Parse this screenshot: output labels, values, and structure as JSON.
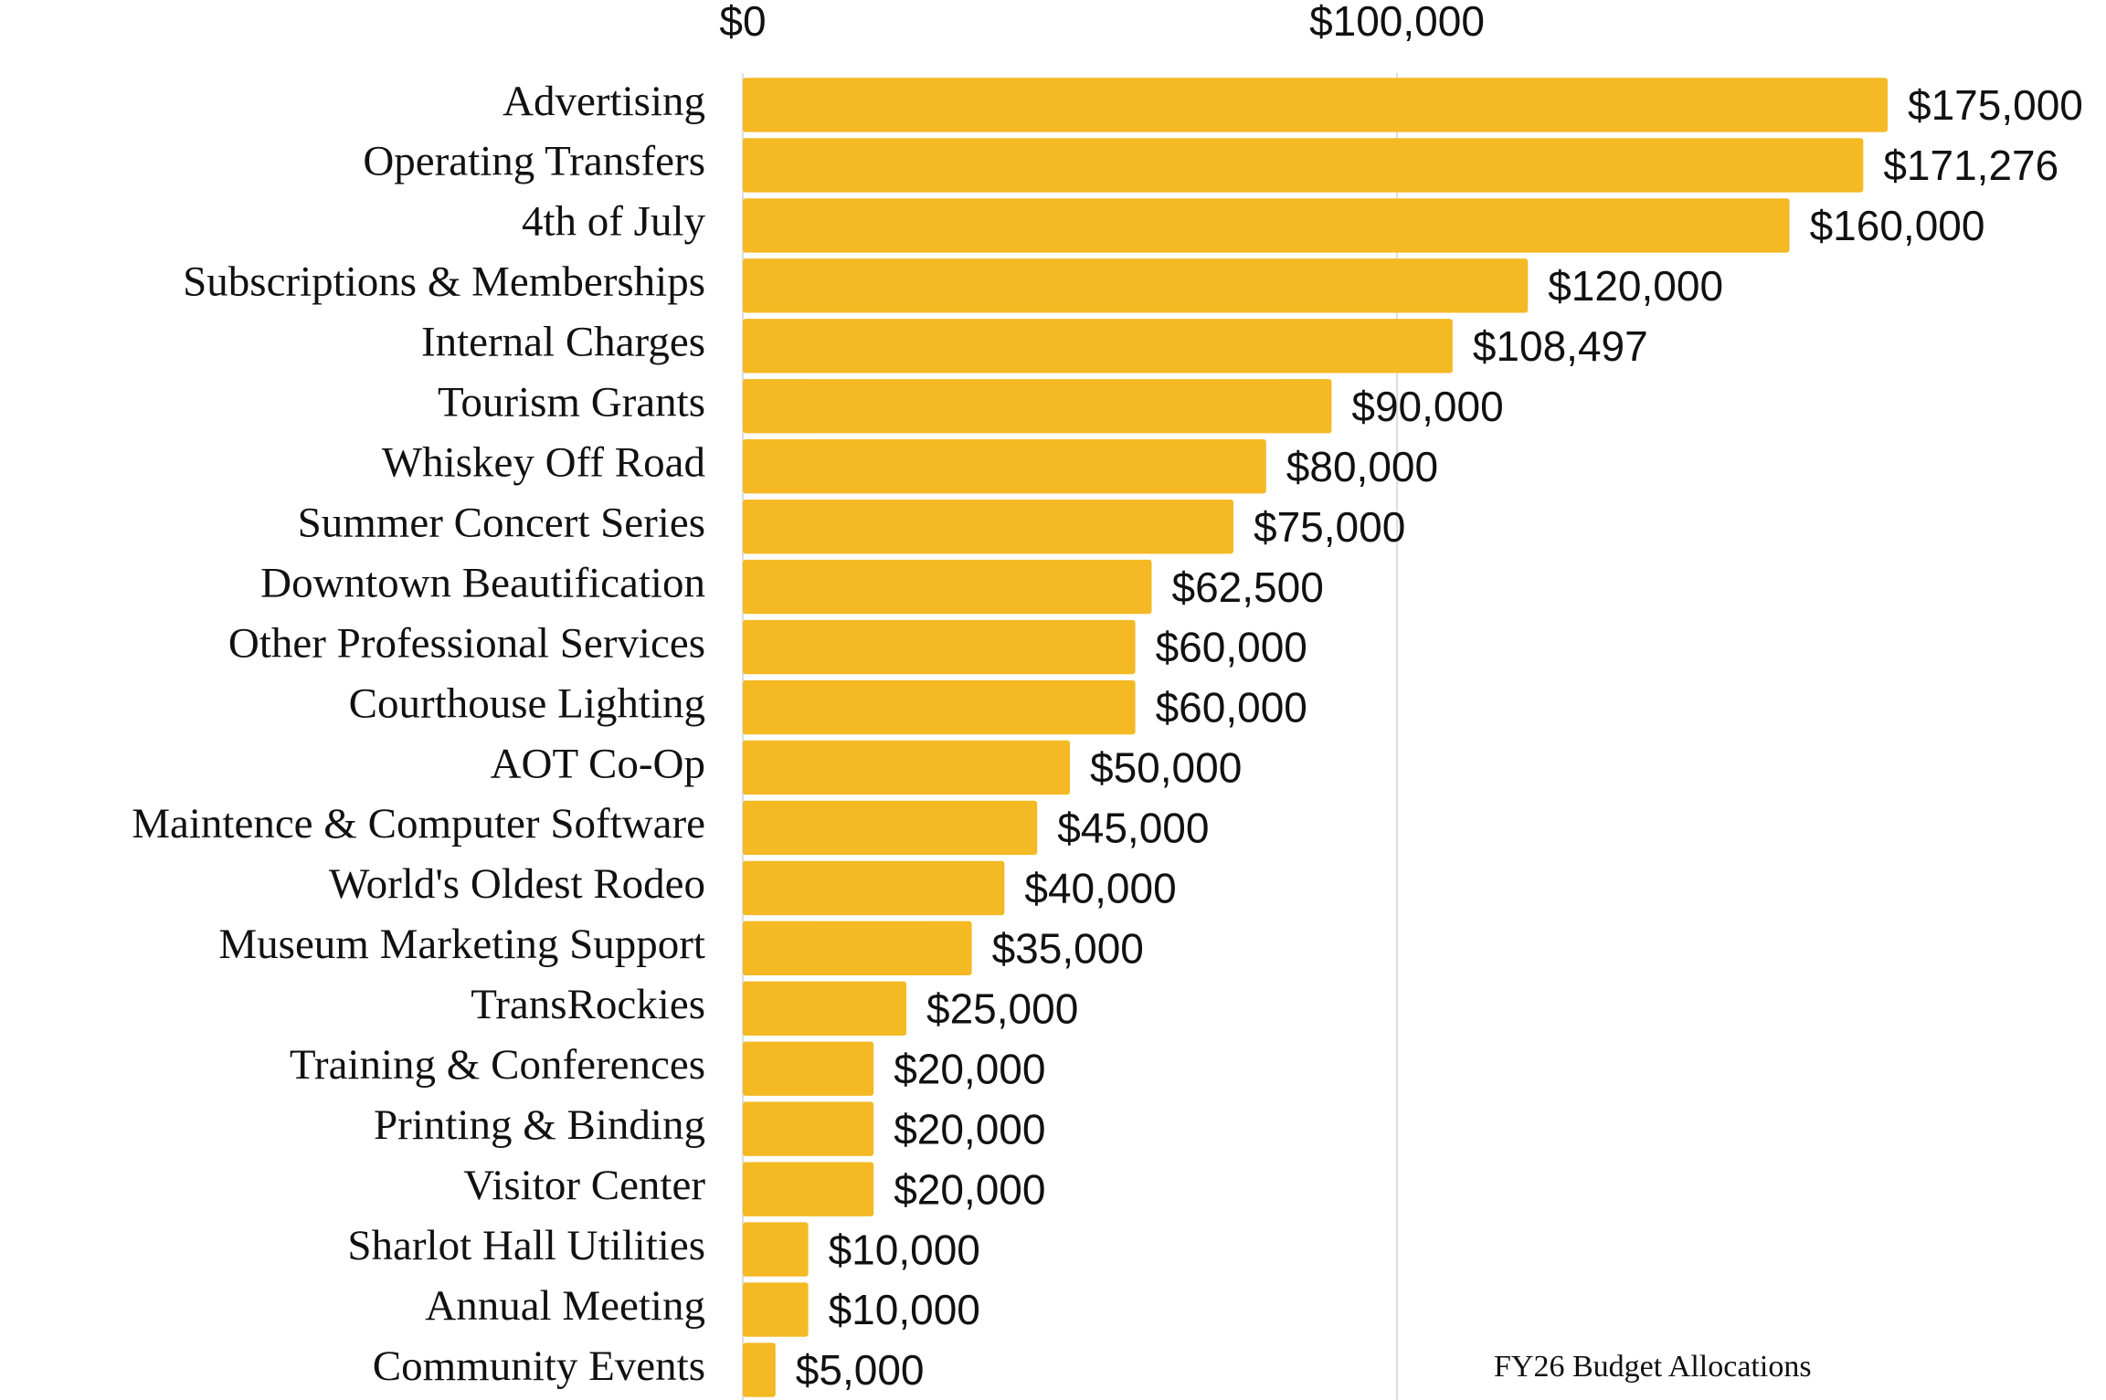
{
  "chart_data": {
    "type": "bar",
    "orientation": "horizontal",
    "categories": [
      "Advertising",
      "Operating Transfers",
      "4th of July",
      "Subscriptions & Memberships",
      "Internal Charges",
      "Tourism Grants",
      "Whiskey Off Road",
      "Summer Concert Series",
      "Downtown Beautification",
      "Other Professional Services",
      "Courthouse Lighting",
      "AOT Co-Op",
      "Maintence & Computer Software",
      "World's Oldest Rodeo",
      "Museum Marketing Support",
      "TransRockies",
      "Training & Conferences",
      "Printing & Binding",
      "Visitor Center",
      "Sharlot Hall Utilities",
      "Annual Meeting",
      "Community Events"
    ],
    "values": [
      175000,
      171276,
      160000,
      120000,
      108497,
      90000,
      80000,
      75000,
      62500,
      60000,
      60000,
      50000,
      45000,
      40000,
      35000,
      25000,
      20000,
      20000,
      20000,
      10000,
      10000,
      5000
    ],
    "value_labels": [
      "$175,000",
      "$171,276",
      "$160,000",
      "$120,000",
      "$108,497",
      "$90,000",
      "$80,000",
      "$75,000",
      "$62,500",
      "$60,000",
      "$60,000",
      "$50,000",
      "$45,000",
      "$40,000",
      "$35,000",
      "$25,000",
      "$20,000",
      "$20,000",
      "$20,000",
      "$10,000",
      "$10,000",
      "$5,000"
    ],
    "color": "#f4b923",
    "xlim": [
      0,
      200000
    ],
    "xticks": [
      {
        "value": 0,
        "label": "$0"
      },
      {
        "value": 100000,
        "label": "$100,000"
      }
    ],
    "grid": true,
    "annotation": "FY26 Budget Allocations"
  }
}
